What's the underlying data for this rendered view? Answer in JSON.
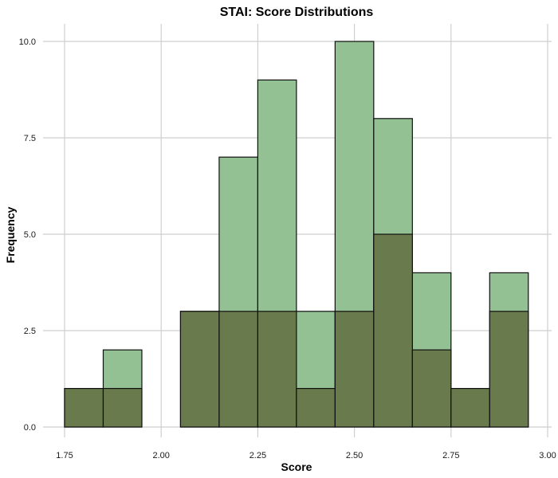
{
  "chart_data": {
    "type": "bar",
    "title": "STAI: Score Distributions",
    "xlabel": "Score",
    "ylabel": "Frequency",
    "xlim": [
      1.75,
      3.0
    ],
    "ylim": [
      0,
      10
    ],
    "x_ticks": [
      "1.75",
      "2.00",
      "2.25",
      "2.50",
      "2.75",
      "3.00"
    ],
    "y_ticks": [
      "0.0",
      "2.5",
      "5.0",
      "7.5",
      "10.0"
    ],
    "bins": [
      [
        1.75,
        1.85
      ],
      [
        1.85,
        1.95
      ],
      [
        1.95,
        2.05
      ],
      [
        2.05,
        2.15
      ],
      [
        2.15,
        2.25
      ],
      [
        2.25,
        2.35
      ],
      [
        2.35,
        2.45
      ],
      [
        2.45,
        2.55
      ],
      [
        2.55,
        2.65
      ],
      [
        2.65,
        2.75
      ],
      [
        2.75,
        2.85
      ],
      [
        2.85,
        2.95
      ]
    ],
    "series": [
      {
        "color": "#93c193",
        "values": [
          1,
          2,
          0,
          3,
          7,
          9,
          3,
          10,
          8,
          4,
          1,
          4
        ]
      },
      {
        "color": "#697a4c",
        "values": [
          1,
          1,
          0,
          3,
          3,
          3,
          1,
          3,
          5,
          2,
          1,
          3
        ]
      }
    ],
    "grid": true,
    "legend": "none"
  }
}
